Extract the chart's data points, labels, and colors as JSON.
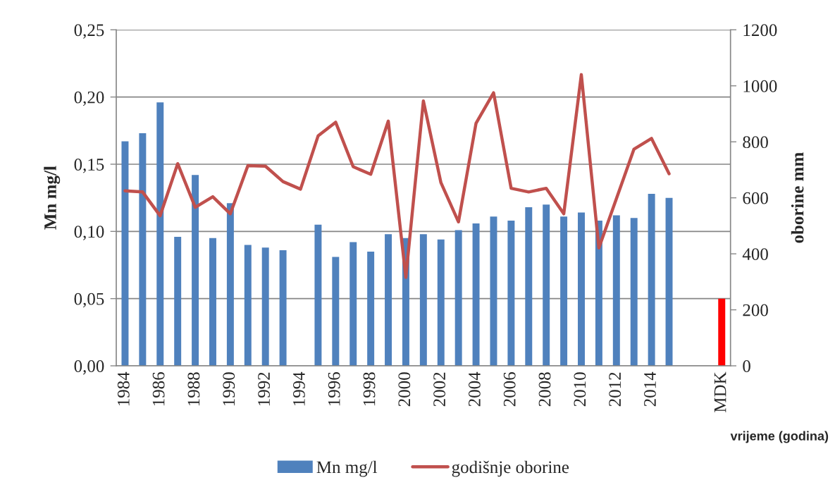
{
  "chart_data": {
    "type": "bar",
    "xlabel": "vrijeme (godina)",
    "ylabel": "Mn mg/l",
    "y2label": "oborine mm",
    "categories": [
      "1984",
      null,
      "1986",
      null,
      "1988",
      null,
      "1990",
      null,
      "1992",
      null,
      "1994",
      null,
      "1996",
      null,
      "1998",
      null,
      "2000",
      null,
      "2002",
      null,
      "2004",
      null,
      "2006",
      null,
      "2008",
      null,
      "2010",
      null,
      "2012",
      null,
      "2014",
      null,
      null,
      null,
      "MDK"
    ],
    "series": [
      {
        "name": "Mn mg/l",
        "color": "#4f81bd",
        "colors": [
          "#4f81bd",
          "#4f81bd",
          "#4f81bd",
          "#4f81bd",
          "#4f81bd",
          "#4f81bd",
          "#4f81bd",
          "#4f81bd",
          "#4f81bd",
          "#4f81bd",
          "#4f81bd",
          "#4f81bd",
          "#4f81bd",
          "#4f81bd",
          "#4f81bd",
          "#4f81bd",
          "#4f81bd",
          "#4f81bd",
          "#4f81bd",
          "#4f81bd",
          "#4f81bd",
          "#4f81bd",
          "#4f81bd",
          "#4f81bd",
          "#4f81bd",
          "#4f81bd",
          "#4f81bd",
          "#4f81bd",
          "#4f81bd",
          "#4f81bd",
          "#4f81bd",
          "#4f81bd",
          "#4f81bd",
          "#4f81bd",
          "#ff0000"
        ],
        "values": [
          0.167,
          0.173,
          0.196,
          0.096,
          0.142,
          0.095,
          0.121,
          0.09,
          0.088,
          0.086,
          null,
          0.105,
          0.081,
          0.092,
          0.085,
          0.098,
          0.095,
          0.098,
          0.094,
          0.101,
          0.106,
          0.111,
          0.108,
          0.118,
          0.12,
          0.111,
          0.114,
          0.108,
          0.112,
          0.11,
          0.128,
          0.125,
          null,
          null,
          0.05
        ]
      },
      {
        "name": "godišnje oborine",
        "type": "line",
        "axis": "y2",
        "color": "#c0504d",
        "values": [
          625,
          621,
          536,
          722,
          566,
          604,
          543,
          715,
          713,
          658,
          631,
          821,
          870,
          711,
          684,
          874,
          316,
          946,
          654,
          514,
          866,
          975,
          634,
          621,
          634,
          543,
          1040,
          421,
          597,
          774,
          812,
          686,
          null,
          null,
          null
        ]
      }
    ],
    "ylim": [
      0,
      0.25
    ],
    "yticks": [
      {
        "value": 0,
        "label": "0,00"
      },
      {
        "value": 0.05,
        "label": "0,05"
      },
      {
        "value": 0.1,
        "label": "0,10"
      },
      {
        "value": 0.15,
        "label": "0,15"
      },
      {
        "value": 0.2,
        "label": "0,20"
      },
      {
        "value": 0.25,
        "label": "0,25"
      }
    ],
    "y2lim": [
      0,
      1200
    ],
    "y2ticks": [
      0,
      200,
      400,
      600,
      800,
      1000,
      1200
    ],
    "grid": "y",
    "legend": "bottom"
  }
}
